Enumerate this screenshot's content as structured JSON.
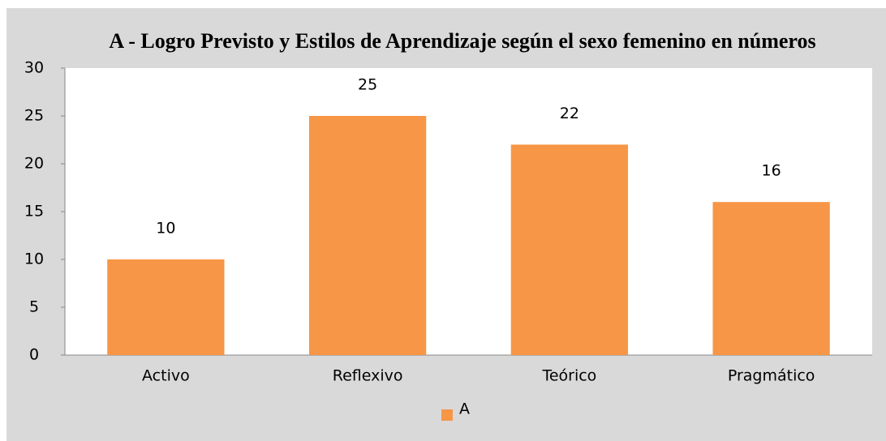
{
  "chart_data": {
    "type": "bar",
    "title": "A - Logro Previsto y Estilos de Aprendizaje según el sexo femenino en números",
    "categories": [
      "Activo",
      "Reflexivo",
      "Teórico",
      "Pragmático"
    ],
    "series": [
      {
        "name": "A",
        "color": "#f79646",
        "values": [
          10,
          25,
          22,
          16
        ]
      }
    ],
    "ylim": [
      0,
      30
    ],
    "yticks": [
      0,
      5,
      10,
      15,
      20,
      25,
      30
    ],
    "legend": "bottom"
  }
}
